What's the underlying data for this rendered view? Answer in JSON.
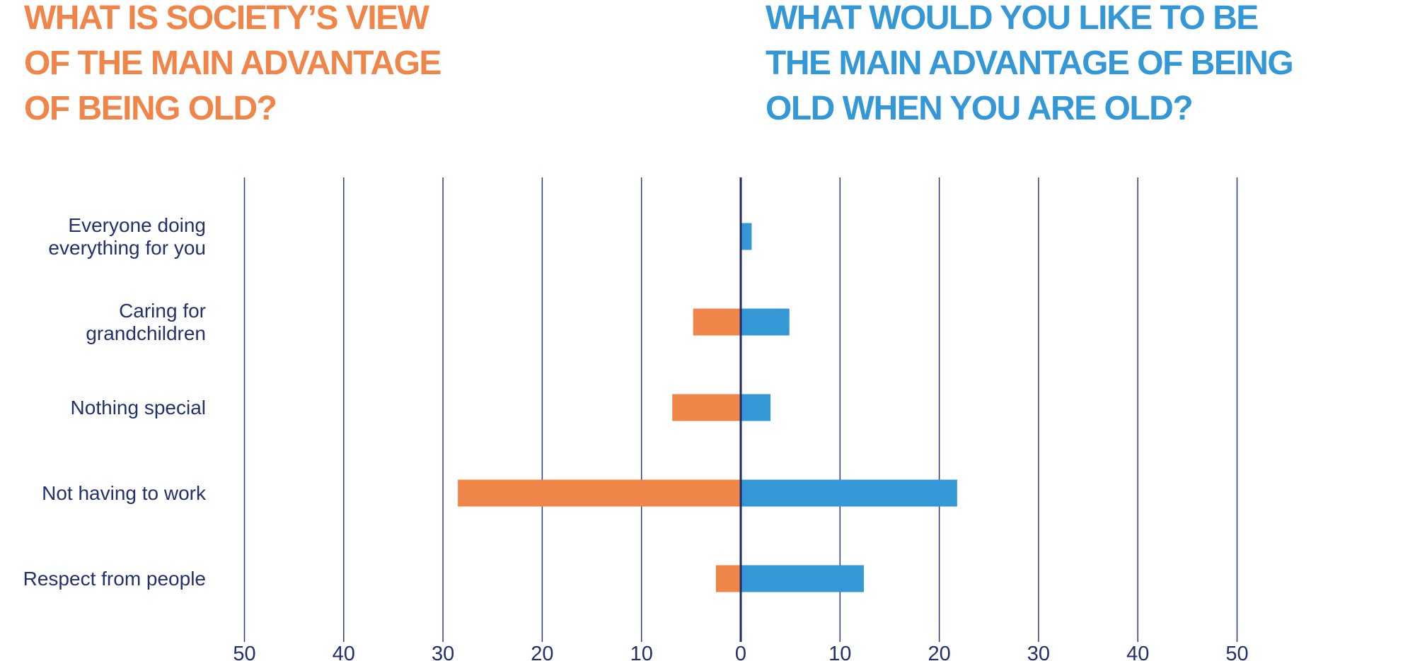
{
  "chart_data": {
    "type": "butterfly",
    "categories": [
      "Everyone doing everything for you",
      "Caring for grandchildren",
      "Nothing special",
      "Not having to work",
      "Respect from people"
    ],
    "series": [
      {
        "name": [
          "WHAT IS SOCIETY’S VIEW",
          "OF THE MAIN ADVANTAGE",
          "OF BEING OLD?"
        ],
        "side": "left",
        "color": "#f0854a",
        "values": [
          0,
          4.8,
          6.9,
          28.5,
          2.5
        ]
      },
      {
        "name": [
          "WHAT WOULD YOU LIKE TO BE",
          "THE MAIN ADVANTAGE OF BEING",
          "OLD WHEN YOU ARE OLD?"
        ],
        "side": "right",
        "color": "#3497d6",
        "values": [
          1.1,
          4.9,
          3.0,
          21.8,
          12.4
        ]
      }
    ],
    "xlim": [
      0,
      50
    ],
    "xticks": [
      0,
      10,
      20,
      30,
      40,
      50
    ],
    "grid": true
  }
}
